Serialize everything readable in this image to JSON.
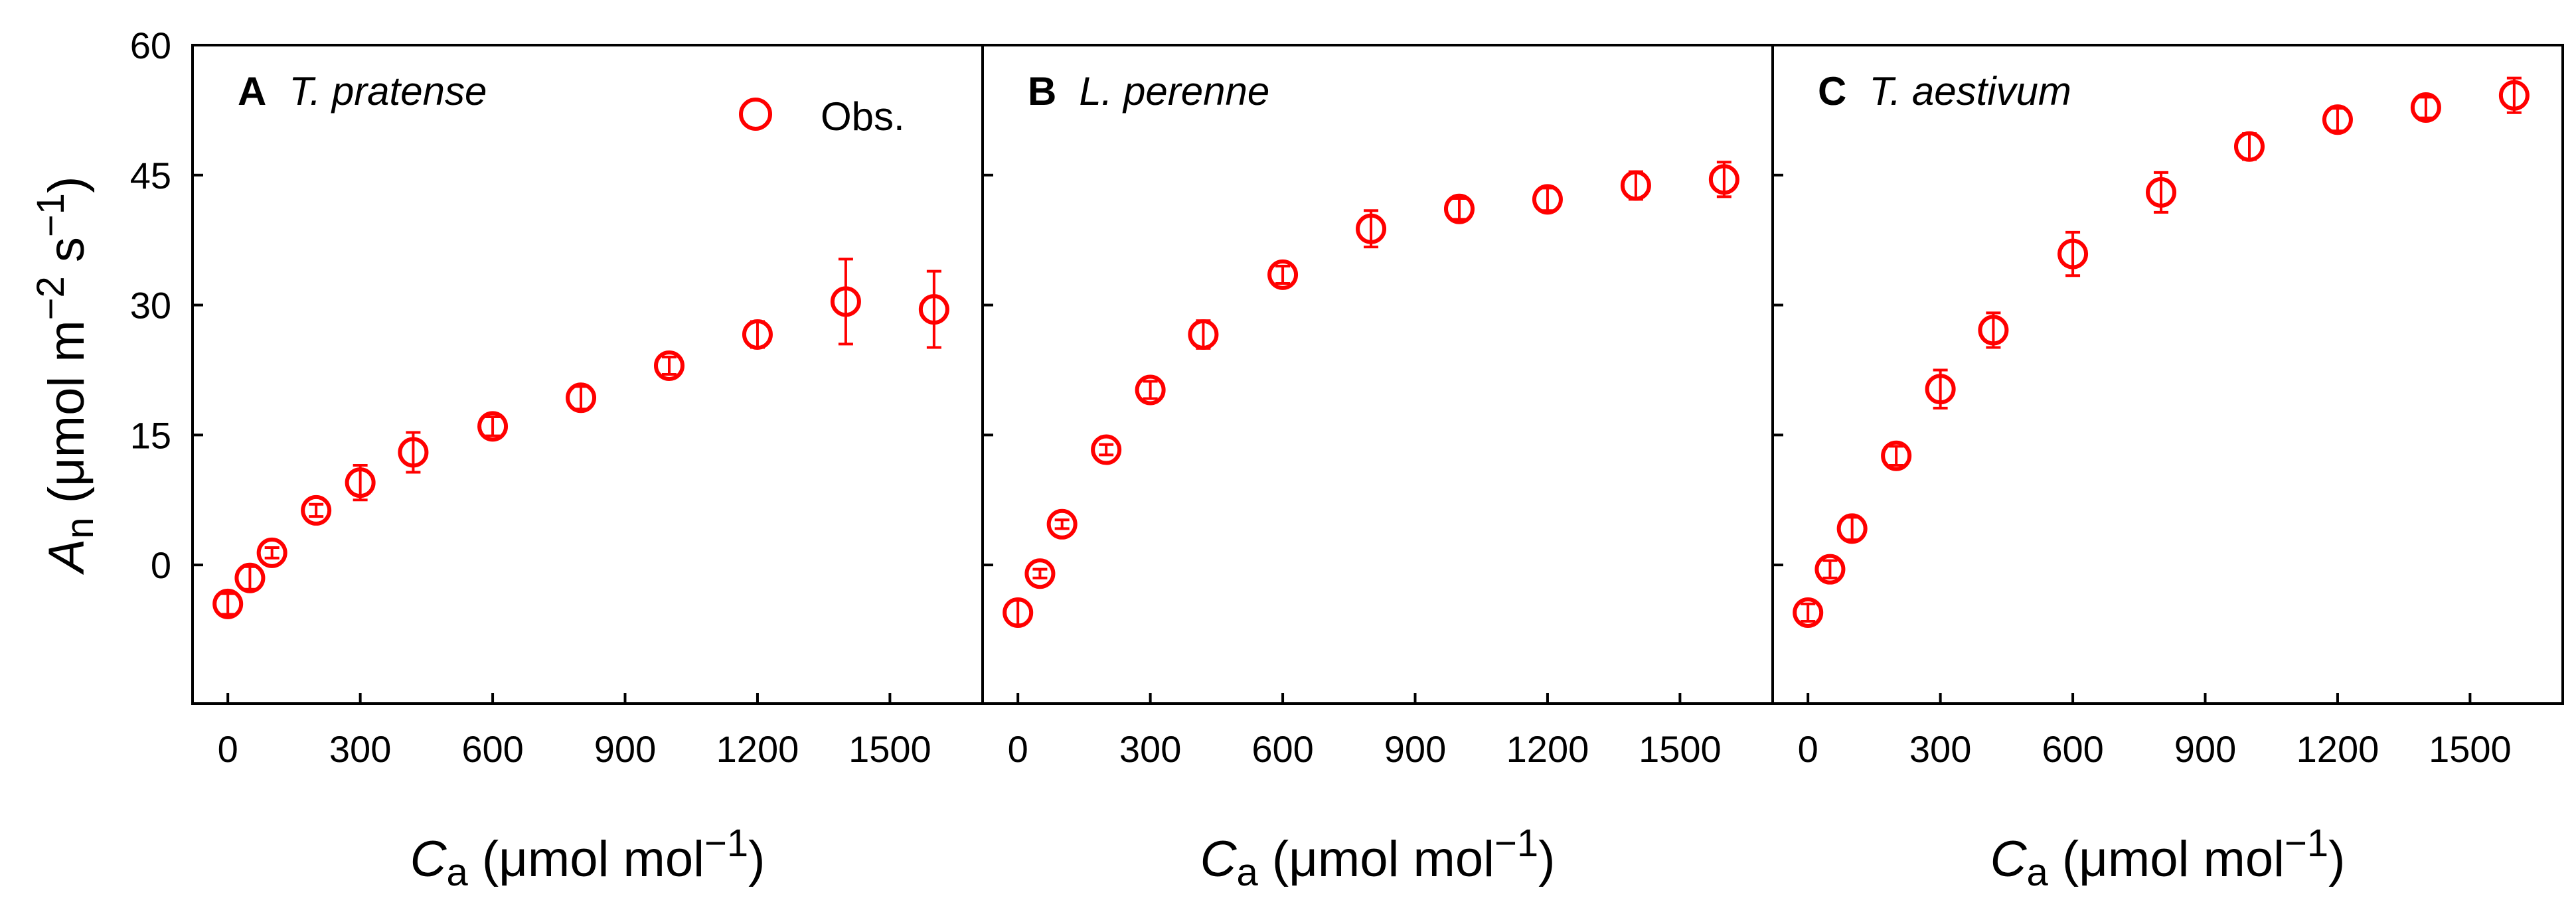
{
  "chart_data": {
    "type": "scatter",
    "shared": {
      "xlabel_main": "C",
      "xlabel_sub": "a",
      "xlabel_unit": " (μmol mol",
      "xlabel_exp": "−1",
      "xlabel_close": ")",
      "ylabel_main": "A",
      "ylabel_sub": "n",
      "ylabel_unit1": " (μmol m",
      "ylabel_exp1": "−2",
      "ylabel_unit2": " s",
      "ylabel_exp2": "−1",
      "ylabel_close": ")",
      "xlim": [
        -80,
        1710
      ],
      "ylim": [
        -16,
        60
      ],
      "xticks": [
        0,
        300,
        600,
        900,
        1200,
        1500
      ],
      "xtick_labels": [
        "0",
        "300",
        "600",
        "900",
        "1200",
        "1500"
      ],
      "yticks": [
        0,
        15,
        30,
        45,
        60
      ],
      "ytick_labels": [
        "0",
        "15",
        "30",
        "45",
        "60"
      ],
      "legend_label": "Obs.",
      "marker_color": "#ff0000"
    },
    "panels": [
      {
        "letter": "A",
        "species": "T. pratense",
        "series": [
          {
            "name": "Obs.",
            "x": [
              0,
              50,
              100,
              200,
              300,
              420,
              600,
              800,
              1000,
              1200,
              1400,
              1600
            ],
            "y": [
              -4.5,
              -1.5,
              1.4,
              6.3,
              9.5,
              13.0,
              16.0,
              19.3,
              23.0,
              26.6,
              30.4,
              29.5
            ],
            "err": [
              1.2,
              1.3,
              0.6,
              0.7,
              2.0,
              2.3,
              1.1,
              1.3,
              1.0,
              1.5,
              4.9,
              4.4
            ]
          }
        ]
      },
      {
        "letter": "B",
        "species": "L. perenne",
        "series": [
          {
            "name": "Obs.",
            "x": [
              0,
              50,
              100,
              200,
              300,
              420,
              600,
              800,
              1000,
              1200,
              1400,
              1600
            ],
            "y": [
              -5.5,
              -1.0,
              4.7,
              13.3,
              20.2,
              26.6,
              33.5,
              38.8,
              41.1,
              42.2,
              43.8,
              44.5
            ],
            "err": [
              1.4,
              0.5,
              0.5,
              0.6,
              1.0,
              1.6,
              1.0,
              2.1,
              1.2,
              1.3,
              1.6,
              2.0
            ]
          }
        ]
      },
      {
        "letter": "C",
        "species": "T. aestivum",
        "series": [
          {
            "name": "Obs.",
            "x": [
              0,
              50,
              100,
              200,
              300,
              420,
              600,
              800,
              1000,
              1200,
              1400,
              1600
            ],
            "y": [
              -5.5,
              -0.5,
              4.2,
              12.6,
              20.3,
              27.1,
              35.9,
              43.0,
              48.3,
              51.4,
              52.8,
              54.2
            ],
            "err": [
              1.0,
              1.0,
              1.3,
              1.1,
              2.2,
              2.0,
              2.5,
              2.3,
              1.5,
              1.3,
              1.2,
              2.0
            ]
          }
        ]
      }
    ]
  }
}
